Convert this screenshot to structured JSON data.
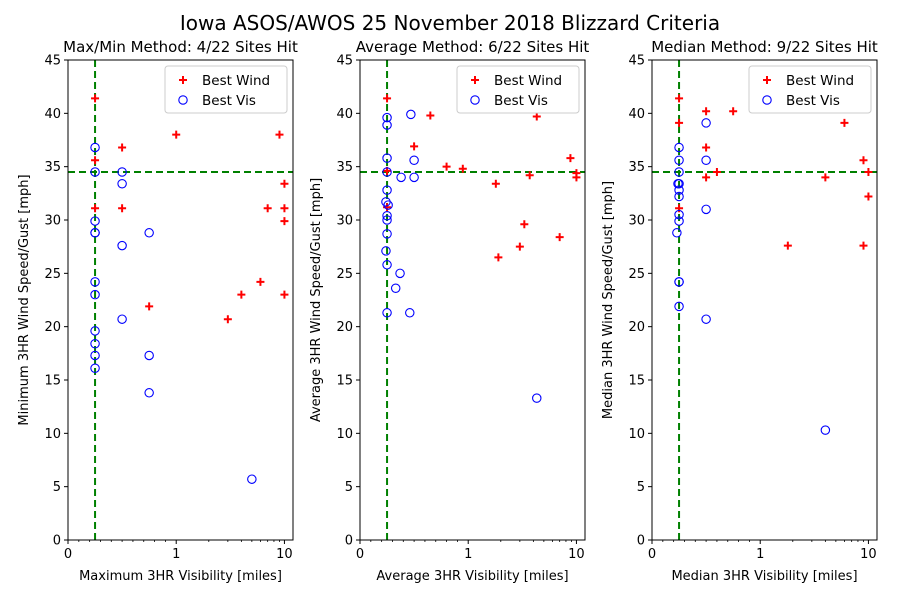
{
  "suptitle": "Iowa ASOS/AWOS 25 November 2018 Blizzard Criteria",
  "colors": {
    "wind": "#ff0000",
    "vis": "#0000ff",
    "crit": "#008000"
  },
  "legend": {
    "wind_label": "Best Wind",
    "vis_label": "Best Vis",
    "placement": "upper-right"
  },
  "chart_data": [
    {
      "type": "scatter",
      "title": "Max/Min Method: 4/22 Sites Hit",
      "xlabel": "Maximum 3HR Visibility [miles]",
      "ylabel": "Minimum 3HR Wind Speed/Gust [mph]",
      "x_scale": "symlog",
      "xlim": [
        0,
        12
      ],
      "ylim": [
        0,
        45
      ],
      "x_ticks": [
        "0",
        "1",
        "10"
      ],
      "y_ticks": [
        0,
        5,
        10,
        15,
        20,
        25,
        30,
        35,
        40,
        45
      ],
      "criteria": {
        "visibility": 0.25,
        "wind": 34.5
      },
      "series": [
        {
          "name": "Best Wind",
          "marker": "+",
          "points": [
            [
              0.25,
              41.4
            ],
            [
              0.25,
              35.6
            ],
            [
              0.25,
              31.1
            ],
            [
              0.5,
              36.8
            ],
            [
              0.5,
              31.1
            ],
            [
              1.0,
              38.0
            ],
            [
              0.75,
              21.9
            ],
            [
              3.0,
              20.7
            ],
            [
              4.0,
              23.0
            ],
            [
              6.0,
              24.2
            ],
            [
              7.0,
              31.1
            ],
            [
              9.0,
              38.0
            ],
            [
              10.0,
              33.4
            ],
            [
              10.0,
              31.1
            ],
            [
              10.0,
              29.9
            ],
            [
              10.0,
              23.0
            ]
          ]
        },
        {
          "name": "Best Vis",
          "marker": "o",
          "points": [
            [
              0.25,
              36.8
            ],
            [
              0.25,
              34.5
            ],
            [
              0.25,
              29.9
            ],
            [
              0.25,
              28.8
            ],
            [
              0.25,
              28.8
            ],
            [
              0.25,
              24.2
            ],
            [
              0.25,
              23.0
            ],
            [
              0.25,
              19.6
            ],
            [
              0.25,
              18.4
            ],
            [
              0.25,
              17.3
            ],
            [
              0.25,
              16.1
            ],
            [
              0.5,
              34.5
            ],
            [
              0.5,
              33.4
            ],
            [
              0.5,
              27.6
            ],
            [
              0.5,
              20.7
            ],
            [
              0.75,
              28.8
            ],
            [
              0.75,
              17.3
            ],
            [
              0.75,
              13.8
            ],
            [
              5.0,
              5.7
            ]
          ]
        }
      ]
    },
    {
      "type": "scatter",
      "title": "Average Method: 6/22 Sites Hit",
      "xlabel": "Average 3HR Visibility [miles]",
      "ylabel": "Average 3HR Wind Speed/Gust [mph]",
      "x_scale": "symlog",
      "xlim": [
        0,
        12
      ],
      "ylim": [
        0,
        45
      ],
      "x_ticks": [
        "0",
        "1",
        "10"
      ],
      "y_ticks": [
        0,
        5,
        10,
        15,
        20,
        25,
        30,
        35,
        40,
        45
      ],
      "criteria": {
        "visibility": 0.25,
        "wind": 34.5
      },
      "series": [
        {
          "name": "Best Wind",
          "marker": "+",
          "points": [
            [
              0.25,
              41.4
            ],
            [
              0.25,
              34.6
            ],
            [
              0.25,
              31.2
            ],
            [
              0.5,
              36.9
            ],
            [
              0.65,
              39.8
            ],
            [
              0.8,
              35.0
            ],
            [
              0.95,
              34.8
            ],
            [
              1.8,
              33.4
            ],
            [
              1.9,
              26.5
            ],
            [
              3.0,
              27.5
            ],
            [
              3.3,
              29.6
            ],
            [
              3.7,
              34.2
            ],
            [
              4.3,
              39.7
            ],
            [
              7.0,
              28.4
            ],
            [
              8.8,
              35.8
            ],
            [
              10.0,
              34.4
            ],
            [
              10.0,
              34.0
            ]
          ]
        },
        {
          "name": "Best Vis",
          "marker": "o",
          "points": [
            [
              0.25,
              39.6
            ],
            [
              0.25,
              38.9
            ],
            [
              0.25,
              35.8
            ],
            [
              0.25,
              34.5
            ],
            [
              0.25,
              32.8
            ],
            [
              0.24,
              31.7
            ],
            [
              0.26,
              31.4
            ],
            [
              0.25,
              30.4
            ],
            [
              0.25,
              30.0
            ],
            [
              0.25,
              28.7
            ],
            [
              0.24,
              27.1
            ],
            [
              0.25,
              25.8
            ],
            [
              0.25,
              21.3
            ],
            [
              0.33,
              23.6
            ],
            [
              0.37,
              25.0
            ],
            [
              0.38,
              34.0
            ],
            [
              0.47,
              39.9
            ],
            [
              0.5,
              35.6
            ],
            [
              0.5,
              34.0
            ],
            [
              0.46,
              21.3
            ],
            [
              4.3,
              13.3
            ]
          ]
        }
      ]
    },
    {
      "type": "scatter",
      "title": "Median Method: 9/22 Sites Hit",
      "xlabel": "Median 3HR Visibility [miles]",
      "ylabel": "Median 3HR Wind Speed/Gust [mph]",
      "x_scale": "symlog",
      "xlim": [
        0,
        12
      ],
      "ylim": [
        0,
        45
      ],
      "x_ticks": [
        "0",
        "1",
        "10"
      ],
      "y_ticks": [
        0,
        5,
        10,
        15,
        20,
        25,
        30,
        35,
        40,
        45
      ],
      "criteria": {
        "visibility": 0.25,
        "wind": 34.5
      },
      "series": [
        {
          "name": "Best Wind",
          "marker": "+",
          "points": [
            [
              0.25,
              41.4
            ],
            [
              0.25,
              39.1
            ],
            [
              0.25,
              31.1
            ],
            [
              0.5,
              40.2
            ],
            [
              0.5,
              36.8
            ],
            [
              0.5,
              34.0
            ],
            [
              0.6,
              34.5
            ],
            [
              0.75,
              40.2
            ],
            [
              1.8,
              27.6
            ],
            [
              4.0,
              34.0
            ],
            [
              6.0,
              39.1
            ],
            [
              9.0,
              35.6
            ],
            [
              9.0,
              27.6
            ],
            [
              10.0,
              34.5
            ],
            [
              10.0,
              32.2
            ]
          ]
        },
        {
          "name": "Best Vis",
          "marker": "o",
          "points": [
            [
              0.25,
              36.8
            ],
            [
              0.25,
              35.6
            ],
            [
              0.25,
              34.5
            ],
            [
              0.24,
              33.4
            ],
            [
              0.25,
              33.4
            ],
            [
              0.25,
              32.8
            ],
            [
              0.25,
              32.2
            ],
            [
              0.25,
              30.5
            ],
            [
              0.25,
              29.9
            ],
            [
              0.23,
              28.8
            ],
            [
              0.25,
              24.2
            ],
            [
              0.25,
              24.2
            ],
            [
              0.25,
              21.9
            ],
            [
              0.5,
              39.1
            ],
            [
              0.5,
              35.6
            ],
            [
              0.5,
              31.0
            ],
            [
              0.5,
              20.7
            ],
            [
              4.0,
              10.3
            ]
          ]
        }
      ]
    }
  ]
}
